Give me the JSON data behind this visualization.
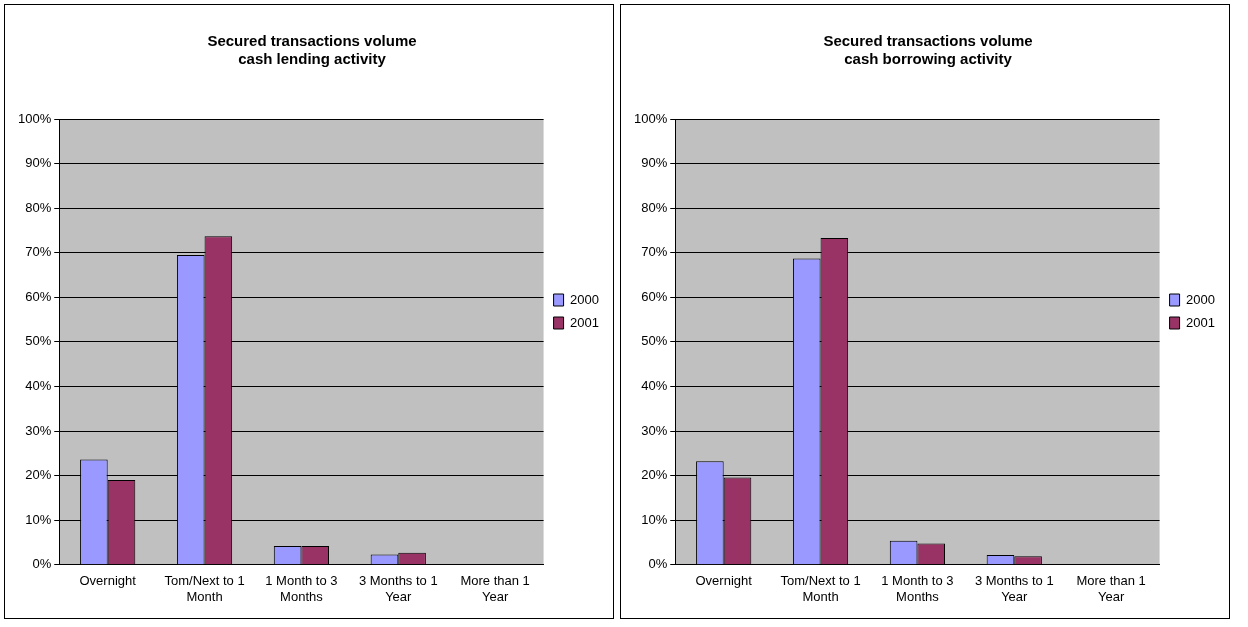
{
  "chart_data": [
    {
      "type": "bar",
      "title": "Secured transactions volume\ncash lending activity",
      "categories": [
        "Overnight",
        "Tom/Next to 1 Month",
        "1 Month to 3 Months",
        "3 Months to 1 Year",
        "More than 1 Year"
      ],
      "series": [
        {
          "name": "2000",
          "color": "#9999ff",
          "values": [
            23.6,
            69.5,
            4.2,
            2.3,
            null
          ]
        },
        {
          "name": "2001",
          "color": "#993366",
          "values": [
            19.0,
            73.7,
            4.2,
            2.7,
            null
          ]
        }
      ],
      "ylim": [
        0,
        100
      ],
      "yticks": [
        {
          "value": 0,
          "label": "0%"
        },
        {
          "value": 10,
          "label": "10%"
        },
        {
          "value": 20,
          "label": "20%"
        },
        {
          "value": 30,
          "label": "30%"
        },
        {
          "value": 40,
          "label": "40%"
        },
        {
          "value": 50,
          "label": "50%"
        },
        {
          "value": 60,
          "label": "60%"
        },
        {
          "value": 70,
          "label": "70%"
        },
        {
          "value": 80,
          "label": "80%"
        },
        {
          "value": 90,
          "label": "90%"
        },
        {
          "value": 100,
          "label": "100%"
        }
      ],
      "grid": "y",
      "legend": "right"
    },
    {
      "type": "bar",
      "title": "Secured transactions volume\ncash borrowing activity",
      "categories": [
        "Overnight",
        "Tom/Next to 1 Month",
        "1 Month to 3 Months",
        "3 Months to 1 Year",
        "More than 1 Year"
      ],
      "series": [
        {
          "name": "2000",
          "color": "#9999ff",
          "values": [
            23.2,
            68.7,
            5.4,
            2.2,
            null
          ]
        },
        {
          "name": "2001",
          "color": "#993366",
          "values": [
            19.6,
            73.3,
            4.8,
            1.9,
            null
          ]
        }
      ],
      "ylim": [
        0,
        100
      ],
      "yticks": [
        {
          "value": 0,
          "label": "0%"
        },
        {
          "value": 10,
          "label": "10%"
        },
        {
          "value": 20,
          "label": "20%"
        },
        {
          "value": 30,
          "label": "30%"
        },
        {
          "value": 40,
          "label": "40%"
        },
        {
          "value": 50,
          "label": "50%"
        },
        {
          "value": 60,
          "label": "60%"
        },
        {
          "value": 70,
          "label": "70%"
        },
        {
          "value": 80,
          "label": "80%"
        },
        {
          "value": 90,
          "label": "90%"
        },
        {
          "value": 100,
          "label": "100%"
        }
      ],
      "grid": "y",
      "legend": "right"
    }
  ]
}
